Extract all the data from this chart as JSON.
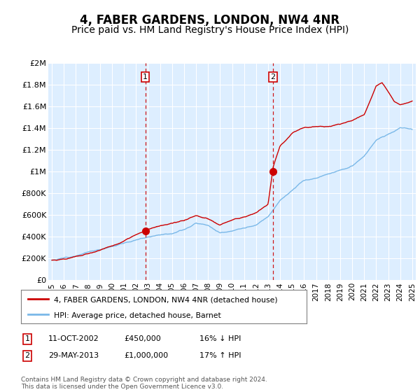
{
  "title": "4, FABER GARDENS, LONDON, NW4 4NR",
  "subtitle": "Price paid vs. HM Land Registry's House Price Index (HPI)",
  "title_fontsize": 12,
  "subtitle_fontsize": 10,
  "bg_color": "#ffffff",
  "plot_bg_color": "#ddeeff",
  "grid_color": "#ffffff",
  "hpi_color": "#7ab8e8",
  "price_color": "#cc0000",
  "vline_color": "#cc0000",
  "purchase1_date_num": 2002.78,
  "purchase2_date_num": 2013.41,
  "purchase1_price": 450000,
  "purchase2_price": 1000000,
  "ylim": [
    0,
    2000000
  ],
  "xlim": [
    1994.7,
    2025.3
  ],
  "yticks": [
    0,
    200000,
    400000,
    600000,
    800000,
    1000000,
    1200000,
    1400000,
    1600000,
    1800000,
    2000000
  ],
  "ytick_labels": [
    "£0",
    "£200K",
    "£400K",
    "£600K",
    "£800K",
    "£1M",
    "£1.2M",
    "£1.4M",
    "£1.6M",
    "£1.8M",
    "£2M"
  ],
  "xtick_years": [
    1995,
    1996,
    1997,
    1998,
    1999,
    2000,
    2001,
    2002,
    2003,
    2004,
    2005,
    2006,
    2007,
    2008,
    2009,
    2010,
    2011,
    2012,
    2013,
    2014,
    2015,
    2016,
    2017,
    2018,
    2019,
    2020,
    2021,
    2022,
    2023,
    2024,
    2025
  ],
  "legend_label_price": "4, FABER GARDENS, LONDON, NW4 4NR (detached house)",
  "legend_label_hpi": "HPI: Average price, detached house, Barnet",
  "note1_label": "1",
  "note1_date": "11-OCT-2002",
  "note1_price": "£450,000",
  "note1_hpi": "16% ↓ HPI",
  "note2_label": "2",
  "note2_date": "29-MAY-2013",
  "note2_price": "£1,000,000",
  "note2_hpi": "17% ↑ HPI",
  "footer": "Contains HM Land Registry data © Crown copyright and database right 2024.\nThis data is licensed under the Open Government Licence v3.0.",
  "hpi_anchors_years": [
    1995,
    1996,
    1997,
    1998,
    1999,
    2000,
    2001,
    2002,
    2003,
    2004,
    2005,
    2006,
    2007,
    2008,
    2009,
    2010,
    2011,
    2012,
    2013,
    2013.41,
    2014,
    2015,
    2016,
    2017,
    2018,
    2019,
    2020,
    2021,
    2022,
    2023,
    2024,
    2025
  ],
  "hpi_anchors_vals": [
    185000,
    205000,
    235000,
    270000,
    290000,
    330000,
    360000,
    390000,
    420000,
    450000,
    470000,
    510000,
    570000,
    560000,
    490000,
    510000,
    530000,
    550000,
    620000,
    680000,
    780000,
    870000,
    960000,
    980000,
    1020000,
    1060000,
    1090000,
    1180000,
    1320000,
    1380000,
    1440000,
    1430000
  ],
  "price_anchors_years": [
    1995,
    1996,
    1997,
    1998,
    1999,
    2000,
    2001,
    2002,
    2002.78,
    2003,
    2004,
    2005,
    2006,
    2007,
    2008,
    2009,
    2010,
    2011,
    2012,
    2013,
    2013.41,
    2014,
    2015,
    2016,
    2017,
    2018,
    2019,
    2020,
    2021,
    2022,
    2022.5,
    2023,
    2023.5,
    2024,
    2025
  ],
  "price_anchors_vals": [
    185000,
    200000,
    220000,
    240000,
    270000,
    310000,
    350000,
    400000,
    450000,
    460000,
    490000,
    500000,
    520000,
    560000,
    530000,
    470000,
    510000,
    540000,
    580000,
    660000,
    1000000,
    1200000,
    1320000,
    1370000,
    1390000,
    1380000,
    1400000,
    1430000,
    1480000,
    1750000,
    1780000,
    1700000,
    1620000,
    1590000,
    1620000
  ]
}
